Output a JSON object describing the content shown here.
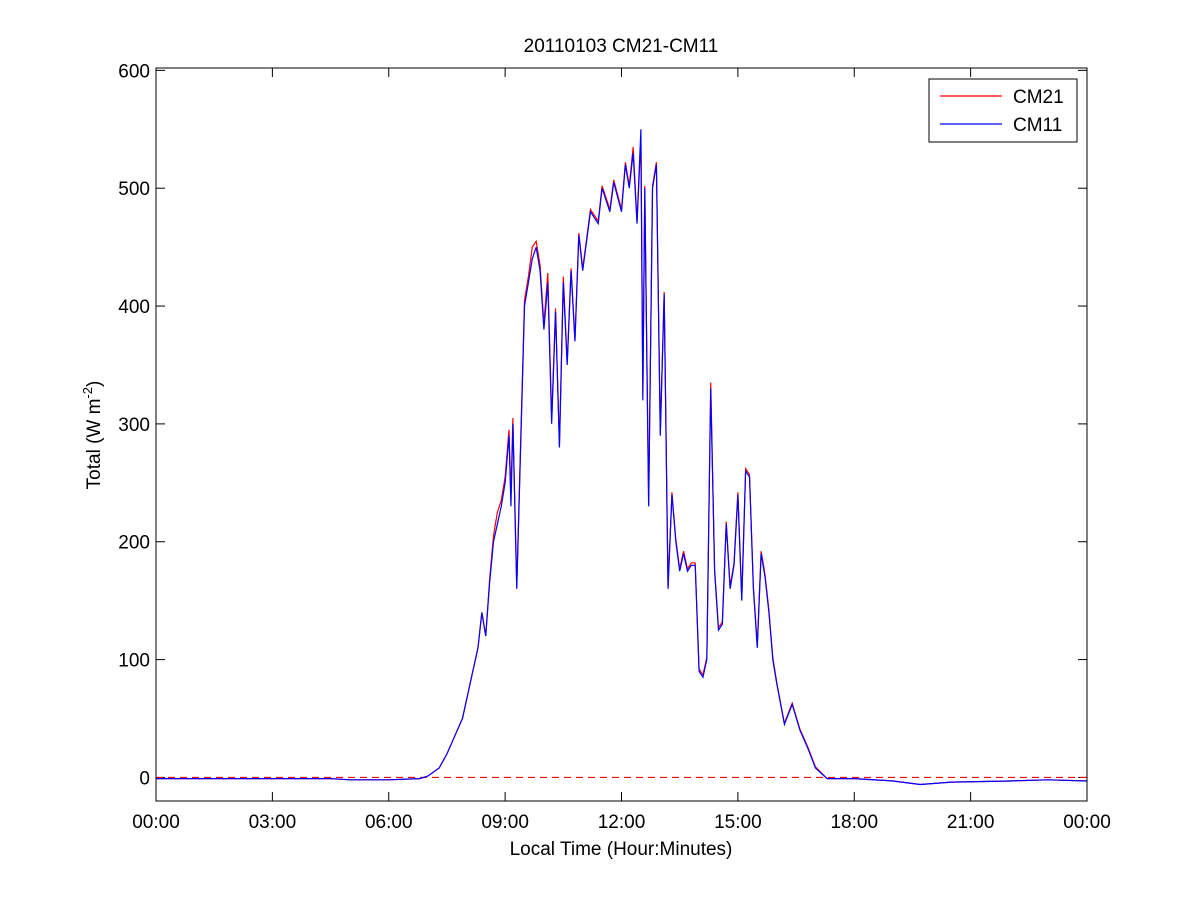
{
  "chart_data": {
    "type": "line",
    "title": "20110103 CM21-CM11",
    "xlabel": "Local Time (Hour:Minutes)",
    "ylabel": {
      "text": "Total (W m",
      "superscript": "-2",
      "end": ")"
    },
    "x": [
      0,
      3,
      4.5,
      5,
      6,
      6.8,
      7,
      7.3,
      7.5,
      7.7,
      7.9,
      8.1,
      8.3,
      8.4,
      8.5,
      8.6,
      8.7,
      8.8,
      8.9,
      9,
      9.1,
      9.15,
      9.2,
      9.3,
      9.4,
      9.5,
      9.6,
      9.7,
      9.8,
      9.9,
      10,
      10.1,
      10.2,
      10.3,
      10.4,
      10.5,
      10.6,
      10.7,
      10.8,
      10.9,
      11,
      11.2,
      11.4,
      11.5,
      11.7,
      11.8,
      12,
      12.1,
      12.2,
      12.3,
      12.4,
      12.5,
      12.55,
      12.6,
      12.7,
      12.8,
      12.9,
      13,
      13.1,
      13.2,
      13.3,
      13.4,
      13.5,
      13.6,
      13.7,
      13.8,
      13.9,
      14,
      14.1,
      14.2,
      14.3,
      14.4,
      14.5,
      14.6,
      14.7,
      14.8,
      14.9,
      15,
      15.1,
      15.2,
      15.3,
      15.4,
      15.5,
      15.6,
      15.7,
      15.8,
      15.9,
      16,
      16.2,
      16.4,
      16.6,
      16.8,
      17,
      17.3,
      18,
      19,
      19.7,
      20.5,
      22,
      23,
      24
    ],
    "series": [
      {
        "name": "CM21",
        "color": "#ff0000",
        "values": [
          -1,
          -1,
          -1,
          -2,
          -2,
          -1,
          1,
          8,
          20,
          35,
          50,
          80,
          110,
          140,
          120,
          168,
          205,
          225,
          235,
          255,
          295,
          240,
          305,
          162,
          285,
          405,
          425,
          450,
          455,
          435,
          385,
          428,
          305,
          398,
          282,
          425,
          352,
          432,
          372,
          462,
          432,
          482,
          472,
          502,
          482,
          507,
          482,
          522,
          502,
          535,
          472,
          540,
          325,
          502,
          232,
          502,
          522,
          292,
          412,
          162,
          242,
          202,
          177,
          192,
          177,
          182,
          182,
          92,
          87,
          102,
          335,
          177,
          127,
          132,
          217,
          162,
          182,
          242,
          152,
          262,
          257,
          162,
          112,
          192,
          172,
          142,
          102,
          81,
          46,
          63,
          41,
          26,
          9,
          -1,
          -1,
          -3,
          -6,
          -4,
          -3,
          -2,
          -3
        ]
      },
      {
        "name": "CM11",
        "color": "#0000ff",
        "values": [
          -1,
          -1,
          -1,
          -2,
          -2,
          -1,
          1,
          8,
          20,
          35,
          50,
          80,
          110,
          140,
          120,
          165,
          200,
          215,
          230,
          250,
          290,
          230,
          300,
          160,
          280,
          400,
          420,
          440,
          450,
          430,
          380,
          420,
          300,
          395,
          280,
          420,
          350,
          430,
          370,
          460,
          430,
          480,
          470,
          500,
          480,
          505,
          480,
          520,
          500,
          530,
          470,
          550,
          320,
          500,
          230,
          500,
          520,
          290,
          410,
          160,
          240,
          200,
          175,
          190,
          175,
          180,
          180,
          90,
          85,
          100,
          330,
          175,
          125,
          130,
          215,
          160,
          180,
          240,
          150,
          260,
          255,
          160,
          110,
          190,
          170,
          140,
          100,
          80,
          45,
          62,
          40,
          25,
          8,
          -1,
          -1,
          -3,
          -6,
          -4,
          -3,
          -2,
          -3
        ]
      }
    ],
    "reference_line": {
      "value": 0,
      "color": "#ff0000",
      "style": "dashed"
    },
    "xlim": [
      0,
      24
    ],
    "xticks": [
      {
        "value": 0,
        "label": "00:00"
      },
      {
        "value": 3,
        "label": "03:00"
      },
      {
        "value": 6,
        "label": "06:00"
      },
      {
        "value": 9,
        "label": "09:00"
      },
      {
        "value": 12,
        "label": "12:00"
      },
      {
        "value": 15,
        "label": "15:00"
      },
      {
        "value": 18,
        "label": "18:00"
      },
      {
        "value": 21,
        "label": "21:00"
      },
      {
        "value": 24,
        "label": "00:00"
      }
    ],
    "ylim": [
      -20,
      602
    ],
    "yticks": [
      0,
      100,
      200,
      300,
      400,
      500,
      600
    ],
    "grid": false,
    "legend": "northeast"
  }
}
